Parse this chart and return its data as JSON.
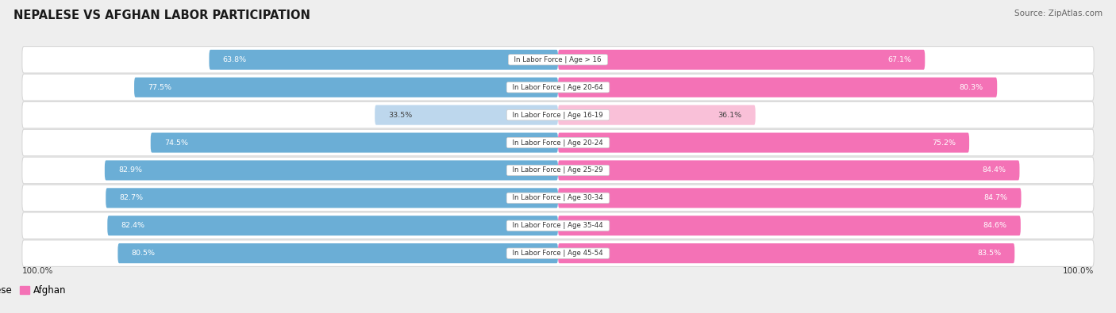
{
  "title": "NEPALESE VS AFGHAN LABOR PARTICIPATION",
  "source": "Source: ZipAtlas.com",
  "categories": [
    "In Labor Force | Age > 16",
    "In Labor Force | Age 20-64",
    "In Labor Force | Age 16-19",
    "In Labor Force | Age 20-24",
    "In Labor Force | Age 25-29",
    "In Labor Force | Age 30-34",
    "In Labor Force | Age 35-44",
    "In Labor Force | Age 45-54"
  ],
  "nepalese_values": [
    63.8,
    77.5,
    33.5,
    74.5,
    82.9,
    82.7,
    82.4,
    80.5
  ],
  "afghan_values": [
    67.1,
    80.3,
    36.1,
    75.2,
    84.4,
    84.7,
    84.6,
    83.5
  ],
  "nepalese_color": "#6baed6",
  "afghan_color": "#f472b6",
  "nepalese_color_light": "#bdd7ed",
  "afghan_color_light": "#f9c0d8",
  "bg_color": "#eeeeee",
  "row_bg_color": "#ffffff",
  "row_border_color": "#d8d8d8",
  "text_white": "#ffffff",
  "text_dark": "#444444",
  "max_value": 100.0,
  "legend_nepalese": "Nepalese",
  "legend_afghan": "Afghan"
}
